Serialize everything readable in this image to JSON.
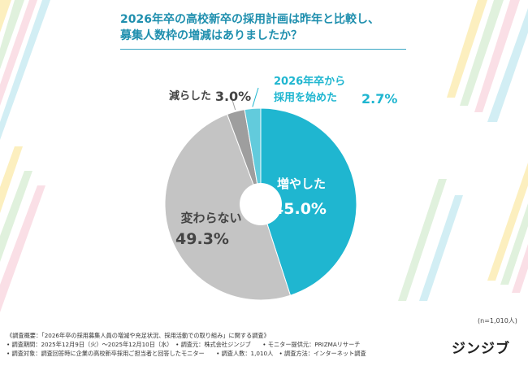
{
  "title": {
    "line1": "2026年卒の高校新卒の採用計画は昨年と比較し、",
    "line2": "募集人数枠の増減はありましたか？"
  },
  "chart_data": {
    "type": "pie",
    "slices": [
      {
        "label": "増やした",
        "value": 45.0,
        "value_label": "45.0%",
        "color": "#1fb6d0"
      },
      {
        "label": "変わらない",
        "value": 49.3,
        "value_label": "49.3%",
        "color": "#c4c4c4"
      },
      {
        "label": "減らした",
        "value": 3.0,
        "value_label": "3.0%",
        "color": "#9e9e9e"
      },
      {
        "label": "2026年卒から採用を始めた",
        "value": 2.7,
        "value_label": "2.7%",
        "color": "#62cbdc"
      }
    ],
    "outside_labels": {
      "decreased": {
        "text": "減らした",
        "value": "3.0%"
      },
      "started_line1": "2026年卒から",
      "started_line2": "採用を始めた",
      "started_value": "2.7%"
    }
  },
  "n_note": "(n=1,010人)",
  "footer": {
    "line1": "《調査概要：「2026年卒の採用募集人員の増減や充足状況、採用活動での取り組み」に関する調査》",
    "line2": "• 調査期間：2025年12月9日（火）～2025年12月10日（水）　• 調査元：株式会社ジンジブ　　• モニター提供元：PRIZMAリサーチ",
    "line3": "• 調査対象：調査回答時に企業の高校新卒採用ご担当者と回答したモニター　　• 調査人数：1,010人　• 調査方法：インターネット調査"
  },
  "logo": "ジンジブ",
  "colors": {
    "accent": "#1f8fae",
    "teal": "#1fb6d0",
    "light_teal": "#62cbdc",
    "light_gray": "#c4c4c4",
    "dark_gray": "#9e9e9e"
  }
}
